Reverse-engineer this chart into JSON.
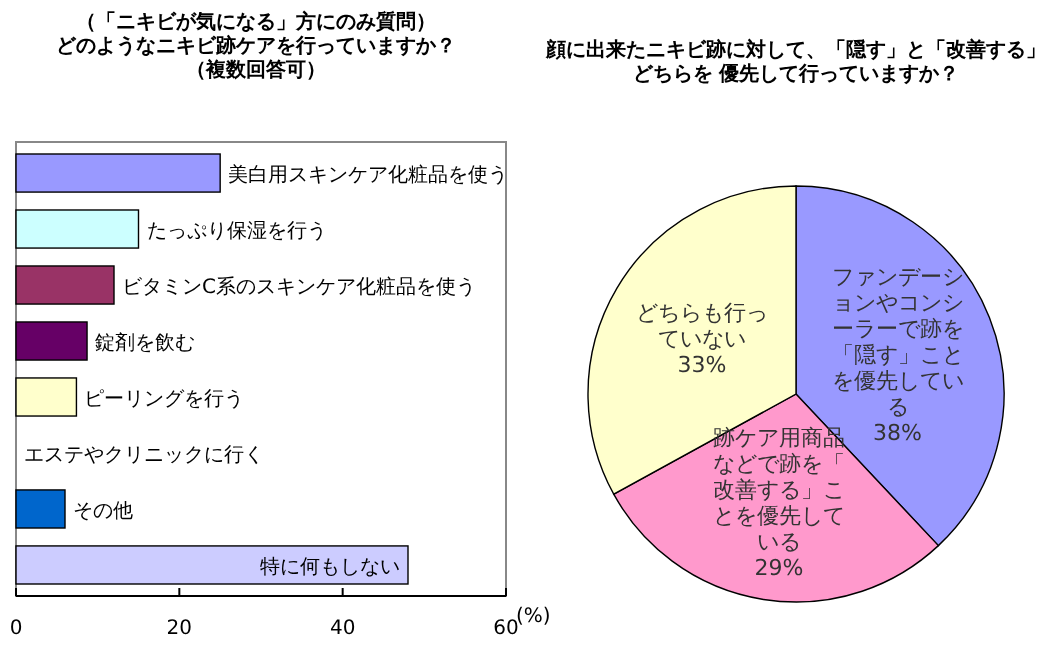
{
  "chart_data": [
    {
      "type": "bar",
      "orientation": "horizontal",
      "title": "（「ニキビが気になる」方にのみ質問）どのようなニキビ跡ケアを行っていますか？",
      "subtitle": "（複数回答可）",
      "xlabel": "(%)",
      "categories": [
        "美白用スキンケア化粧品を使う",
        "たっぷり保湿を行う",
        "ビタミンC系のスキンケア化粧品を使う",
        "錠剤を飲む",
        "ピーリングを行う",
        "エステやクリニックに行く",
        "その他",
        "特に何もしない"
      ],
      "values": [
        25,
        15,
        12,
        8.7,
        7.4,
        0,
        6,
        48
      ],
      "colors": [
        "#9999ff",
        "#ccffff",
        "#993366",
        "#660066",
        "#ffffcc",
        "#ff8080",
        "#0066cc",
        "#ccccff"
      ],
      "xlim": [
        0,
        60
      ],
      "xticks": [
        0,
        20,
        40,
        60
      ],
      "grid": false
    },
    {
      "type": "pie",
      "title": "顔に出来たニキビ跡に対して、「隠す」と「改善する」どちらを 優先して行っていますか？",
      "categories": [
        "ファンデーションやコンシーラーで跡を「隠す」ことを優先している",
        "跡ケア用商品などで跡を「改善する」ことを優先している",
        "どちらも行っていない"
      ],
      "values": [
        38,
        29,
        33
      ],
      "value_labels": [
        "38%",
        "29%",
        "33%"
      ],
      "colors": [
        "#9999ff",
        "#ff99cc",
        "#ffffcc"
      ]
    }
  ]
}
